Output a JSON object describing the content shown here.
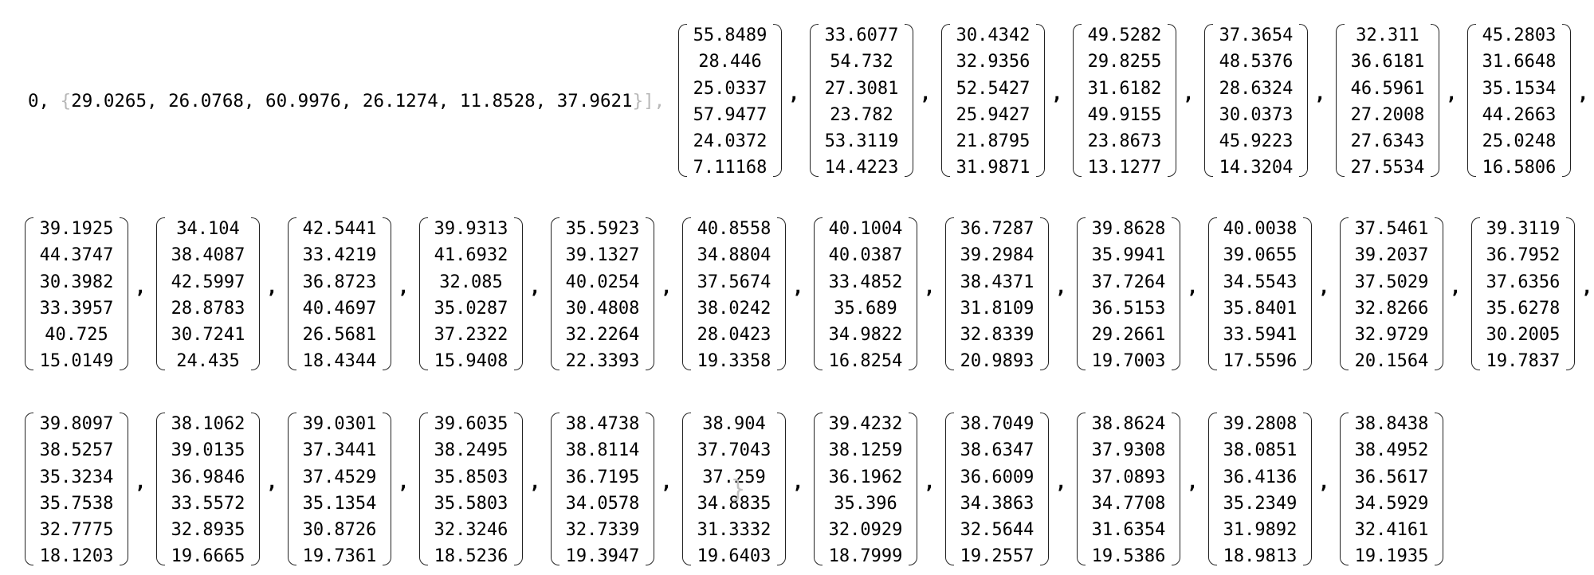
{
  "window": {
    "title": ""
  },
  "output": {
    "prefix_text": "0, ",
    "open_brace": "{",
    "first_vector_text": "29.0265, 26.0768, 60.9976, 26.1274, 11.8528, 37.9621",
    "close_brace": "}",
    "trailing_text": "],",
    "separator": ",",
    "final_close_brace": "}",
    "matrices": [
      [
        "55.8489",
        "28.446",
        "25.0337",
        "57.9477",
        "24.0372",
        "7.11168"
      ],
      [
        "33.6077",
        "54.732",
        "27.3081",
        "23.782",
        "53.3119",
        "14.4223"
      ],
      [
        "30.4342",
        "32.9356",
        "52.5427",
        "25.9427",
        "21.8795",
        "31.9871"
      ],
      [
        "49.5282",
        "29.8255",
        "31.6182",
        "49.9155",
        "23.8673",
        "13.1277"
      ],
      [
        "37.3654",
        "48.5376",
        "28.6324",
        "30.0373",
        "45.9223",
        "14.3204"
      ],
      [
        "32.311",
        "36.6181",
        "46.5961",
        "27.2008",
        "27.6343",
        "27.5534"
      ],
      [
        "45.2803",
        "31.6648",
        "35.1534",
        "44.2663",
        "25.0248",
        "16.5806"
      ],
      [
        "39.1925",
        "44.3747",
        "30.3982",
        "33.3957",
        "40.725",
        "15.0149"
      ],
      [
        "34.104",
        "38.4087",
        "42.5997",
        "28.8783",
        "30.7241",
        "24.435"
      ],
      [
        "42.5441",
        "33.4219",
        "36.8723",
        "40.4697",
        "26.5681",
        "18.4344"
      ],
      [
        "39.9313",
        "41.6932",
        "32.085",
        "35.0287",
        "37.2322",
        "15.9408"
      ],
      [
        "35.5923",
        "39.1327",
        "40.0254",
        "30.4808",
        "32.2264",
        "22.3393"
      ],
      [
        "40.8558",
        "34.8804",
        "37.5674",
        "38.0242",
        "28.0423",
        "19.3358"
      ],
      [
        "40.1004",
        "40.0387",
        "33.4852",
        "35.689",
        "34.9822",
        "16.8254"
      ],
      [
        "36.7287",
        "39.2984",
        "38.4371",
        "31.8109",
        "32.8339",
        "20.9893"
      ],
      [
        "39.8628",
        "35.9941",
        "37.7264",
        "36.5153",
        "29.2661",
        "19.7003"
      ],
      [
        "40.0038",
        "39.0655",
        "34.5543",
        "35.8401",
        "33.5941",
        "17.5596"
      ],
      [
        "37.5461",
        "39.2037",
        "37.5029",
        "32.8266",
        "32.9729",
        "20.1564"
      ],
      [
        "39.3119",
        "36.7952",
        "37.6356",
        "35.6278",
        "30.2005",
        "19.7837"
      ],
      [
        "39.8097",
        "38.5257",
        "35.3234",
        "35.7538",
        "32.7775",
        "18.1203"
      ],
      [
        "38.1062",
        "39.0135",
        "36.9846",
        "33.5572",
        "32.8935",
        "19.6665"
      ],
      [
        "39.0301",
        "37.3441",
        "37.4529",
        "35.1354",
        "30.8726",
        "19.7361"
      ],
      [
        "39.6035",
        "38.2495",
        "35.8503",
        "35.5803",
        "32.3246",
        "18.5236"
      ],
      [
        "38.4738",
        "38.8114",
        "36.7195",
        "34.0578",
        "32.7339",
        "19.3947"
      ],
      [
        "38.904",
        "37.7043",
        "37.259",
        "34.8835",
        "31.3332",
        "19.6403"
      ],
      [
        "39.4232",
        "38.1259",
        "36.1962",
        "35.396",
        "32.0929",
        "18.7999"
      ],
      [
        "38.7049",
        "38.6347",
        "36.6009",
        "34.3863",
        "32.5644",
        "19.2557"
      ],
      [
        "38.8624",
        "37.9308",
        "37.0893",
        "34.7708",
        "31.6354",
        "19.5386"
      ],
      [
        "39.2808",
        "38.0851",
        "36.4136",
        "35.2349",
        "31.9892",
        "18.9813"
      ],
      [
        "38.8438",
        "38.4952",
        "36.5617",
        "34.5929",
        "32.4161",
        "19.1935"
      ]
    ]
  }
}
